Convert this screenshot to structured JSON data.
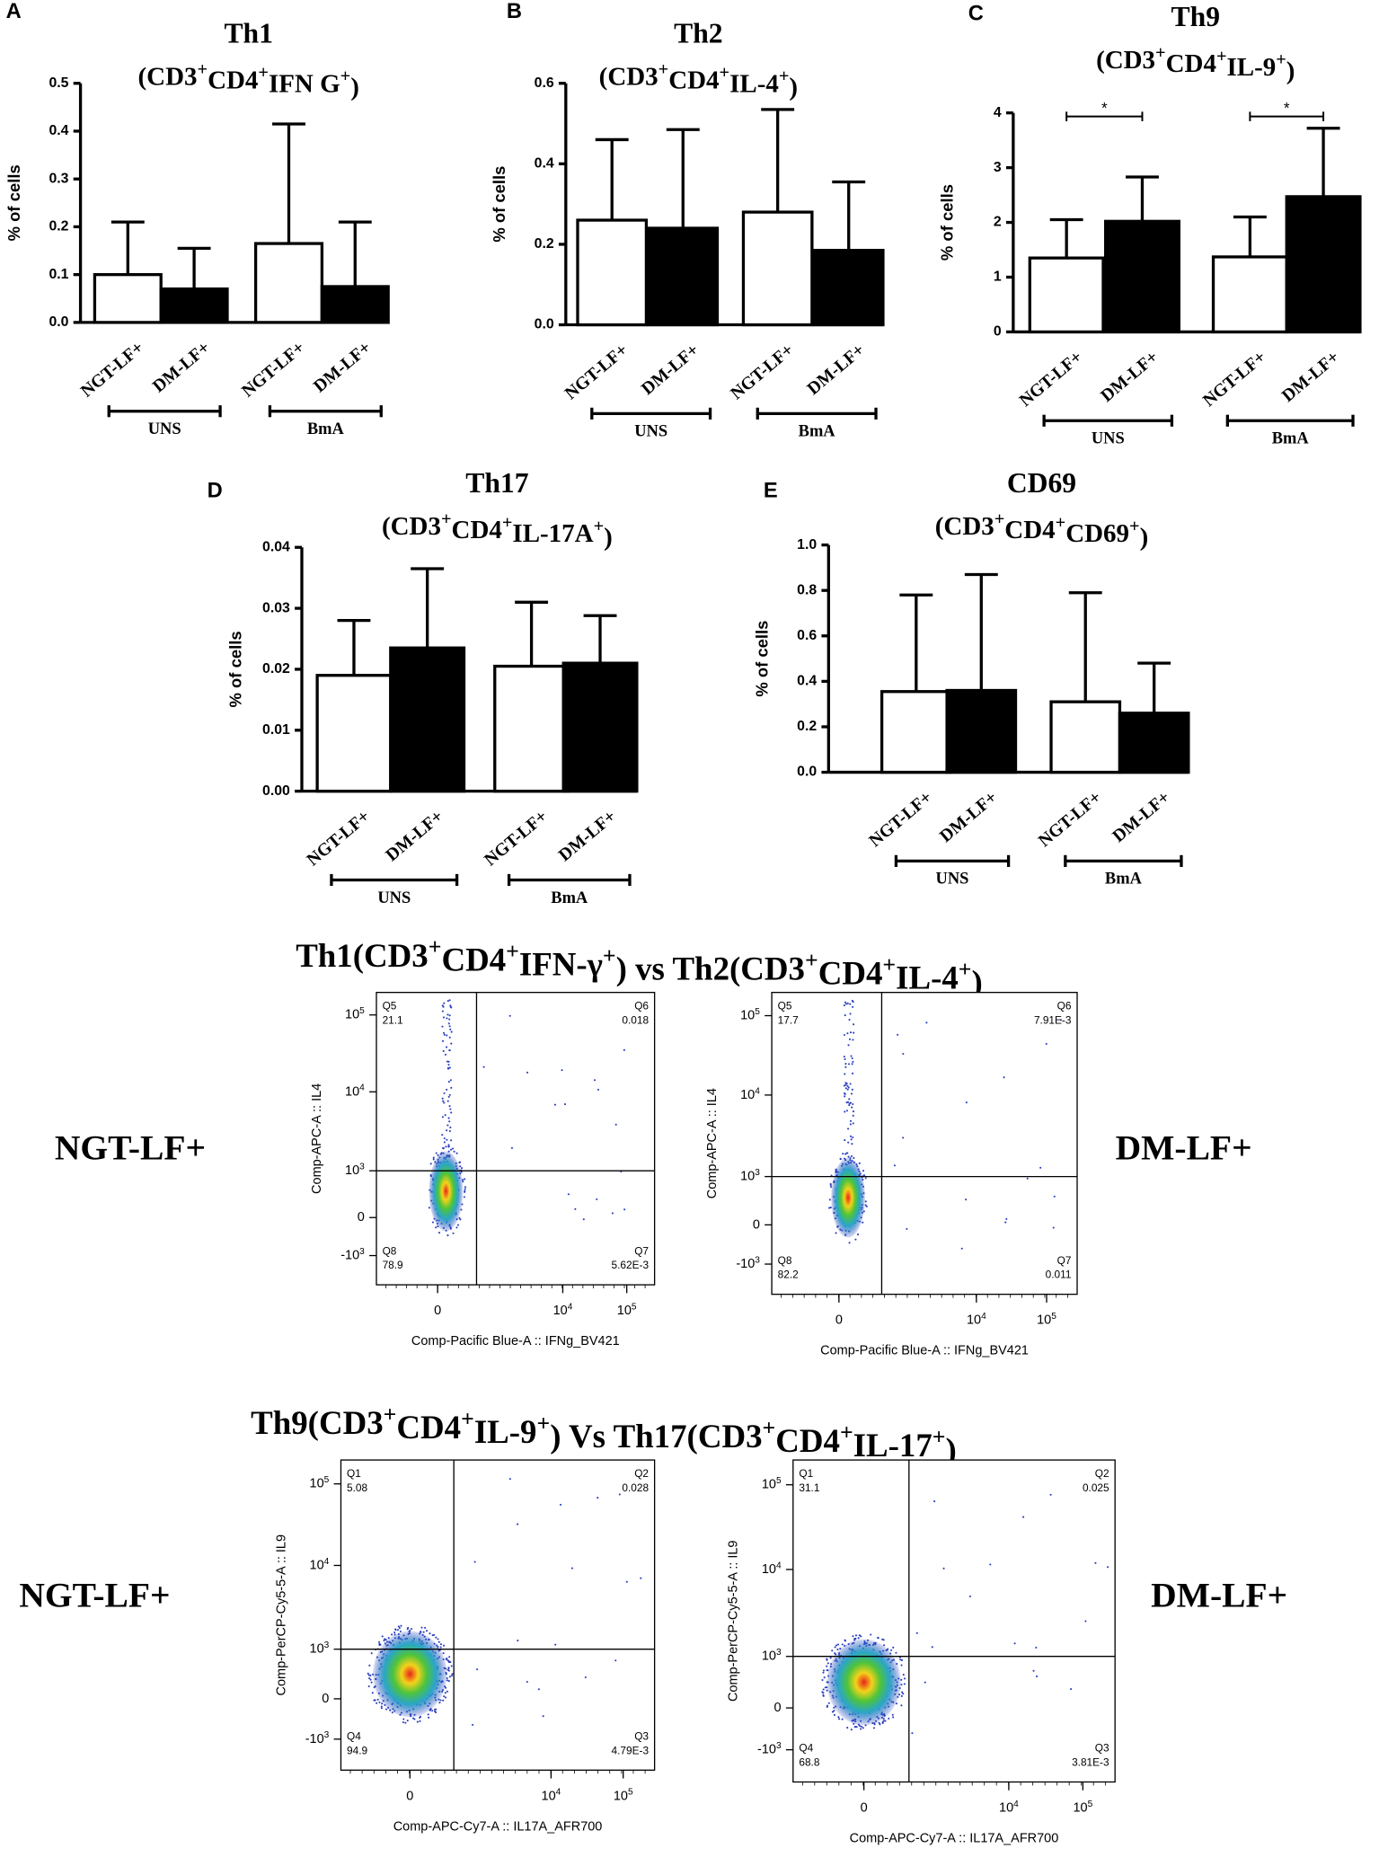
{
  "chart_data": [
    {
      "type": "bar",
      "letter": "A",
      "title": "Th1",
      "subtitle": [
        "(CD3",
        "+",
        "CD4",
        "+",
        "IFN G",
        "+",
        ")"
      ],
      "ylabel": "% of cells",
      "categories": [
        "NGT-LF+",
        "DM-LF+",
        "NGT-LF+",
        "DM-LF+"
      ],
      "groups": [
        "UNS",
        "BmA"
      ],
      "values": [
        0.1,
        0.07,
        0.165,
        0.075
      ],
      "errors": [
        0.11,
        0.085,
        0.25,
        0.135
      ],
      "colors": [
        "#ffffff",
        "#000000",
        "#ffffff",
        "#000000"
      ],
      "ylim": [
        0,
        0.5
      ],
      "yticks": [
        {
          "value": 0,
          "label": "0.0"
        },
        0.1,
        0.2,
        0.3,
        0.4,
        0.5
      ]
    },
    {
      "type": "bar",
      "letter": "B",
      "title": "Th2",
      "subtitle": [
        "(CD3",
        "+",
        "CD4",
        "+",
        "IL-4",
        "+",
        ")"
      ],
      "ylabel": "% of cells",
      "categories": [
        "NGT-LF+",
        "DM-LF+",
        "NGT-LF+",
        "DM-LF+"
      ],
      "groups": [
        "UNS",
        "BmA"
      ],
      "values": [
        0.26,
        0.24,
        0.28,
        0.185
      ],
      "errors": [
        0.2,
        0.245,
        0.255,
        0.17
      ],
      "colors": [
        "#ffffff",
        "#000000",
        "#ffffff",
        "#000000"
      ],
      "ylim": [
        0,
        0.6
      ],
      "yticks": [
        {
          "value": 0,
          "label": "0.0"
        },
        0.2,
        0.4,
        0.6
      ]
    },
    {
      "type": "bar",
      "letter": "C",
      "title": "Th9",
      "subtitle": [
        "(CD3",
        "+",
        "CD4",
        "+",
        "IL-9",
        "+",
        ")"
      ],
      "ylabel": "% of cells",
      "categories": [
        "NGT-LF+",
        "DM-LF+",
        "NGT-LF+",
        "DM-LF+"
      ],
      "groups": [
        "UNS",
        "BmA"
      ],
      "values": [
        1.35,
        2.02,
        1.37,
        2.47
      ],
      "errors": [
        0.7,
        0.81,
        0.73,
        1.25
      ],
      "colors": [
        "#ffffff",
        "#000000",
        "#ffffff",
        "#000000"
      ],
      "ylim": [
        0,
        4
      ],
      "yticks": [
        0,
        1,
        2,
        3,
        4
      ],
      "significance": [
        {
          "label": "*",
          "pair": [
            0,
            1
          ]
        },
        {
          "label": "*",
          "pair": [
            2,
            3
          ]
        }
      ]
    },
    {
      "type": "bar",
      "letter": "D",
      "title": "Th17",
      "subtitle": [
        "(CD3",
        "+",
        "CD4",
        "+",
        "IL-17A",
        "+",
        ")"
      ],
      "ylabel": "% of cells",
      "categories": [
        "NGT-LF+",
        "DM-LF+",
        "NGT-LF+",
        "DM-LF+"
      ],
      "groups": [
        "UNS",
        "BmA"
      ],
      "values": [
        0.019,
        0.0235,
        0.0205,
        0.021
      ],
      "errors": [
        0.009,
        0.013,
        0.0105,
        0.0078
      ],
      "colors": [
        "#ffffff",
        "#000000",
        "#ffffff",
        "#000000"
      ],
      "ylim": [
        0,
        0.04
      ],
      "yticks": [
        {
          "value": 0,
          "label": "0.00"
        },
        0.01,
        0.02,
        0.03,
        0.04
      ]
    },
    {
      "type": "bar",
      "letter": "E",
      "title": "CD69",
      "subtitle": [
        "(CD3",
        "+",
        "CD4",
        "+",
        "CD69",
        "+",
        ")"
      ],
      "ylabel": "% of cells",
      "categories": [
        "NGT-LF+",
        "DM-LF+",
        "NGT-LF+",
        "DM-LF+"
      ],
      "groups": [
        "UNS",
        "BmA"
      ],
      "values": [
        0.355,
        0.36,
        0.31,
        0.26
      ],
      "errors": [
        0.425,
        0.51,
        0.48,
        0.22
      ],
      "colors": [
        "#ffffff",
        "#000000",
        "#ffffff",
        "#000000"
      ],
      "ylim": [
        0,
        1
      ],
      "yticks": [
        {
          "value": 0,
          "label": "0.0"
        },
        0.2,
        0.4,
        0.6,
        0.8,
        {
          "value": 1,
          "label": "1.0"
        }
      ]
    }
  ],
  "flow_sections": [
    {
      "title": [
        "Th1(CD3",
        "+",
        "CD4",
        "+",
        "IFN-γ",
        "+",
        ") vs Th2(CD3",
        "+",
        "CD4",
        "+",
        "IL-4",
        "+",
        ")"
      ],
      "left_label": "NGT-LF+",
      "right_label": "DM-LF+",
      "plots": [
        {
          "x_label": "Comp-Pacific Blue-A :: IFNg_BV421",
          "y_label": "Comp-APC-A :: IL4",
          "quadrants": [
            [
              "Q5",
              "21.1"
            ],
            [
              "Q6",
              "0.018"
            ],
            [
              "Q8",
              "78.9"
            ],
            [
              "Q7",
              "5.62E-3"
            ]
          ],
          "y_ticks": [
            [
              "10",
              "5"
            ],
            [
              "10",
              "4"
            ],
            [
              "10",
              "3"
            ],
            [
              "0"
            ],
            [
              "-10",
              "3"
            ]
          ],
          "x_ticks": [
            [
              "0"
            ],
            [
              "10",
              "4"
            ],
            [
              "10",
              "5"
            ]
          ]
        },
        {
          "x_label": "Comp-Pacific Blue-A :: IFNg_BV421",
          "y_label": "Comp-APC-A :: IL4",
          "quadrants": [
            [
              "Q5",
              "17.7"
            ],
            [
              "Q6",
              "7.91E-3"
            ],
            [
              "Q8",
              "82.2"
            ],
            [
              "Q7",
              "0.011"
            ]
          ],
          "y_ticks": [
            [
              "10",
              "5"
            ],
            [
              "10",
              "4"
            ],
            [
              "10",
              "3"
            ],
            [
              "0"
            ],
            [
              "-10",
              "3"
            ]
          ],
          "x_ticks": [
            [
              "0"
            ],
            [
              "10",
              "4"
            ],
            [
              "10",
              "5"
            ]
          ]
        }
      ]
    },
    {
      "title": [
        "Th9(CD3",
        "+",
        "CD4",
        "+",
        "IL-9",
        "+",
        ") Vs Th17(CD3",
        "+",
        "CD4",
        "+",
        "IL-17",
        "+",
        ")"
      ],
      "left_label": "NGT-LF+",
      "right_label": "DM-LF+",
      "plots": [
        {
          "x_label": "Comp-APC-Cy7-A :: IL17A_AFR700",
          "y_label": "Comp-PerCP-Cy5-5-A :: IL9",
          "quadrants": [
            [
              "Q1",
              "5.08"
            ],
            [
              "Q2",
              "0.028"
            ],
            [
              "Q4",
              "94.9"
            ],
            [
              "Q3",
              "4.79E-3"
            ]
          ],
          "y_ticks": [
            [
              "10",
              "5"
            ],
            [
              "10",
              "4"
            ],
            [
              "10",
              "3"
            ],
            [
              "0"
            ],
            [
              "-10",
              "3"
            ]
          ],
          "x_ticks": [
            [
              "0"
            ],
            [
              "10",
              "4"
            ],
            [
              "10",
              "5"
            ]
          ]
        },
        {
          "x_label": "Comp-APC-Cy7-A :: IL17A_AFR700",
          "y_label": "Comp-PerCP-Cy5-5-A :: IL9",
          "quadrants": [
            [
              "Q1",
              "31.1"
            ],
            [
              "Q2",
              "0.025"
            ],
            [
              "Q4",
              "68.8"
            ],
            [
              "Q3",
              "3.81E-3"
            ]
          ],
          "y_ticks": [
            [
              "10",
              "5"
            ],
            [
              "10",
              "4"
            ],
            [
              "10",
              "3"
            ],
            [
              "0"
            ],
            [
              "-10",
              "3"
            ]
          ],
          "x_ticks": [
            [
              "0"
            ],
            [
              "10",
              "4"
            ],
            [
              "10",
              "5"
            ]
          ]
        }
      ]
    }
  ]
}
